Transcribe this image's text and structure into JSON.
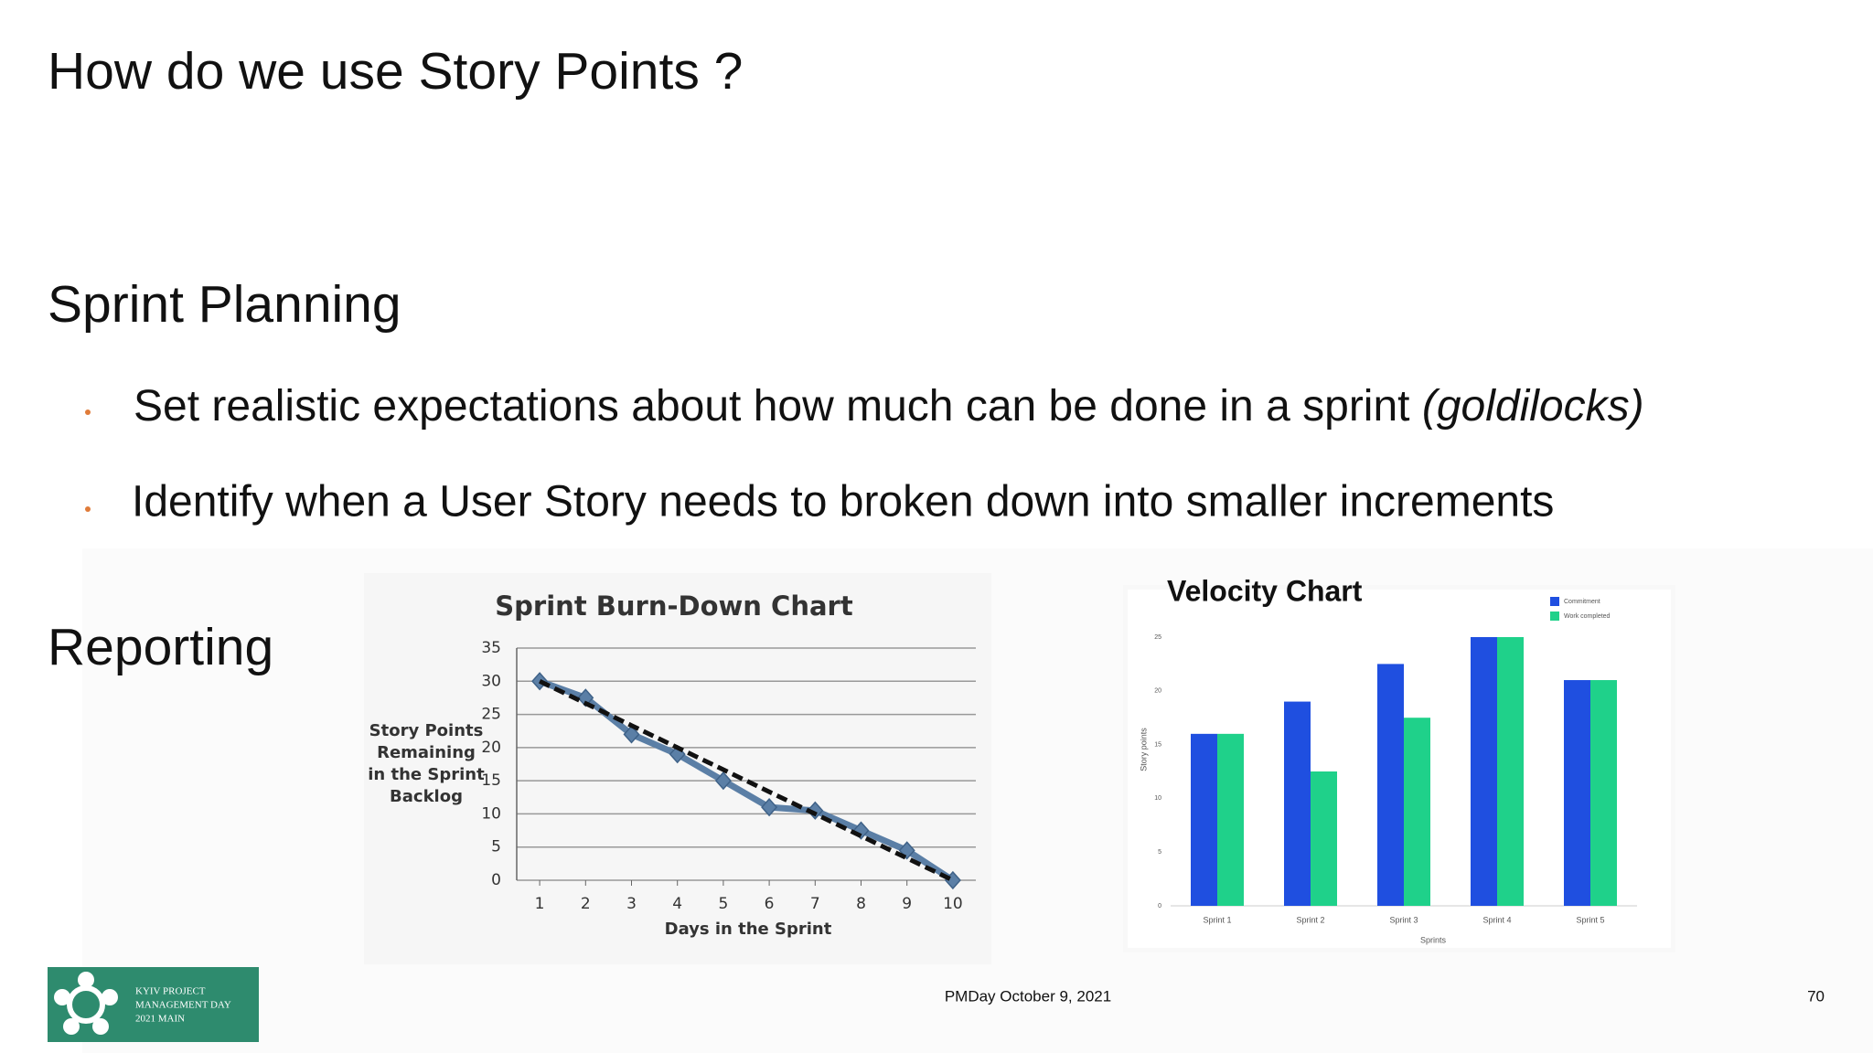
{
  "title": "How do we use Story Points ?",
  "sections": [
    {
      "heading": "Sprint Planning",
      "bullets": [
        {
          "text": "Set realistic expectations about how much can be done in a sprint",
          "emphasis": "(goldilocks)"
        },
        {
          "text": "Identify when a User Story needs to broken down into smaller increments"
        }
      ]
    },
    {
      "heading": "Reporting"
    }
  ],
  "chart_data": [
    {
      "type": "line",
      "title": "Sprint Burn-Down Chart",
      "x_label": "Days in the Sprint",
      "y_label": "Story Points Remaining in the Sprint Backlog",
      "x": [
        1,
        2,
        3,
        4,
        5,
        6,
        7,
        8,
        9,
        10
      ],
      "series": [
        {
          "color": "#5b7fa6",
          "style": "solid",
          "marker": "diamond",
          "values": [
            30,
            27.5,
            22,
            19,
            15,
            11,
            10.5,
            7.5,
            4.5,
            0
          ]
        },
        {
          "color": "#111111",
          "style": "dashed",
          "values": [
            30,
            26.67,
            23.33,
            20,
            16.67,
            13.33,
            10,
            6.67,
            3.33,
            0
          ]
        }
      ],
      "xlim": [
        0.5,
        10.5
      ],
      "xticks": [
        1,
        2,
        3,
        4,
        5,
        6,
        7,
        8,
        9,
        10
      ],
      "ylim": [
        0,
        35
      ],
      "yticks": [
        0,
        5,
        10,
        15,
        20,
        25,
        30,
        35
      ],
      "grid": true
    },
    {
      "type": "bar",
      "title": "Velocity Chart",
      "x_label": "Sprints",
      "y_label": "Story points",
      "categories": [
        "Sprint 1",
        "Sprint 2",
        "Sprint 3",
        "Sprint 4",
        "Sprint 5"
      ],
      "series": [
        {
          "name": "Commitment",
          "color": "#1f4fe0",
          "values": [
            16,
            19,
            22.5,
            25,
            21
          ]
        },
        {
          "name": "Work completed",
          "color": "#1fd18a",
          "values": [
            16,
            12.5,
            17.5,
            25,
            21
          ]
        }
      ],
      "ylim": [
        0,
        25
      ],
      "yticks": [
        0,
        5,
        10,
        15,
        20,
        25
      ],
      "legend": "top-right"
    }
  ],
  "footer": {
    "event": "PMDay October 9, 2021",
    "page": "70",
    "logo": [
      "KYIV PROJECT",
      "MANAGEMENT DAY",
      "2021 MAIN"
    ]
  }
}
